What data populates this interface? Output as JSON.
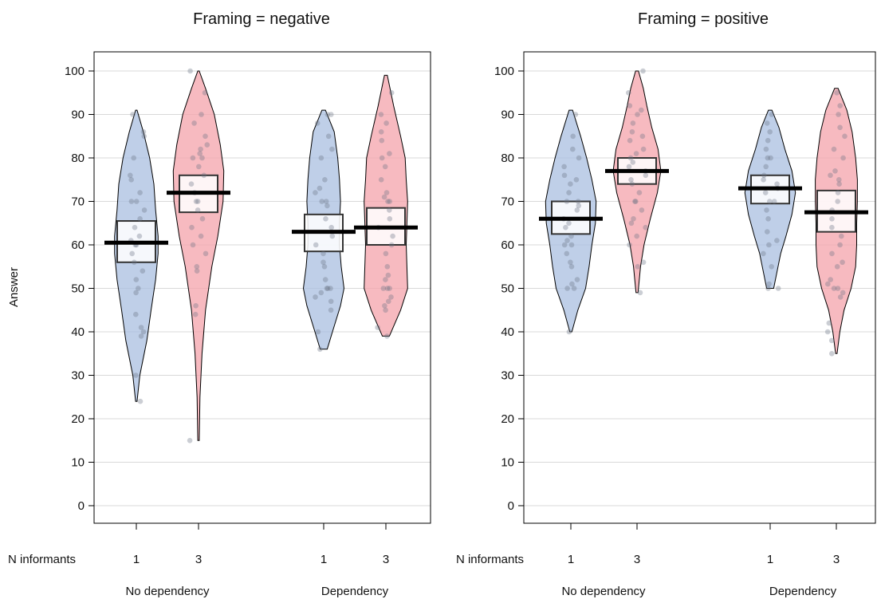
{
  "figure": {
    "y_axis_label": "Answer",
    "x_row_label": "N informants"
  },
  "colors": {
    "n1_fill": "#a9bfe0",
    "n3_fill": "#f4a3ab",
    "outline": "#000000",
    "point": "#6b7285",
    "mean_line": "#000000",
    "hdi_box": "#ffffff",
    "grid": "#d9d9d9"
  },
  "chart_data": [
    {
      "type": "pirateplot",
      "title": "Framing = negative",
      "ylabel": "Answer",
      "ylim": [
        0,
        100
      ],
      "yticks": [
        0,
        10,
        20,
        30,
        40,
        50,
        60,
        70,
        80,
        90,
        100
      ],
      "grid": true,
      "row_label": "N informants",
      "groups": [
        {
          "label": "No dependency",
          "items": [
            {
              "n": "1",
              "color": "n1",
              "mean": 60.5,
              "hdi": [
                56,
                65.5
              ],
              "range": [
                24,
                91
              ],
              "density": [
                [
                  24,
                  0.02
                ],
                [
                  30,
                  0.1
                ],
                [
                  38,
                  0.3
                ],
                [
                  45,
                  0.42
                ],
                [
                  52,
                  0.55
                ],
                [
                  58,
                  0.62
                ],
                [
                  62,
                  0.62
                ],
                [
                  68,
                  0.55
                ],
                [
                  74,
                  0.5
                ],
                [
                  80,
                  0.38
                ],
                [
                  86,
                  0.2
                ],
                [
                  91,
                  0.02
                ]
              ],
              "points": [
                24,
                30,
                39,
                40,
                41,
                44,
                49,
                50,
                52,
                54,
                56,
                58,
                60,
                60,
                61,
                62,
                64,
                66,
                68,
                70,
                70,
                72,
                75,
                76,
                80,
                85,
                86,
                90
              ]
            },
            {
              "n": "3",
              "color": "n3",
              "mean": 72,
              "hdi": [
                67.5,
                76
              ],
              "range": [
                15,
                100
              ],
              "density": [
                [
                  15,
                  0.02
                ],
                [
                  25,
                  0.04
                ],
                [
                  35,
                  0.1
                ],
                [
                  45,
                  0.2
                ],
                [
                  55,
                  0.38
                ],
                [
                  62,
                  0.55
                ],
                [
                  70,
                  0.7
                ],
                [
                  77,
                  0.72
                ],
                [
                  83,
                  0.62
                ],
                [
                  90,
                  0.45
                ],
                [
                  96,
                  0.2
                ],
                [
                  100,
                  0.02
                ]
              ],
              "points": [
                15,
                44,
                46,
                54,
                55,
                58,
                60,
                62,
                64,
                66,
                68,
                70,
                70,
                72,
                74,
                76,
                78,
                80,
                80,
                81,
                82,
                83,
                85,
                88,
                90,
                95,
                100
              ]
            }
          ]
        },
        {
          "label": "Dependency",
          "items": [
            {
              "n": "1",
              "color": "n1",
              "mean": 63,
              "hdi": [
                58.5,
                67
              ],
              "range": [
                36,
                91
              ],
              "density": [
                [
                  36,
                  0.1
                ],
                [
                  40,
                  0.25
                ],
                [
                  46,
                  0.48
                ],
                [
                  50,
                  0.58
                ],
                [
                  55,
                  0.5
                ],
                [
                  60,
                  0.45
                ],
                [
                  65,
                  0.45
                ],
                [
                  70,
                  0.48
                ],
                [
                  75,
                  0.45
                ],
                [
                  80,
                  0.4
                ],
                [
                  86,
                  0.3
                ],
                [
                  91,
                  0.05
                ]
              ],
              "points": [
                36,
                40,
                45,
                47,
                48,
                49,
                50,
                50,
                50,
                52,
                55,
                56,
                58,
                60,
                62,
                64,
                66,
                69,
                70,
                70,
                72,
                73,
                75,
                80,
                82,
                85,
                88,
                90,
                90
              ]
            },
            {
              "n": "3",
              "color": "n3",
              "mean": 64,
              "hdi": [
                60,
                68.5
              ],
              "range": [
                39,
                99
              ],
              "density": [
                [
                  39,
                  0.1
                ],
                [
                  45,
                  0.42
                ],
                [
                  50,
                  0.62
                ],
                [
                  55,
                  0.6
                ],
                [
                  60,
                  0.58
                ],
                [
                  65,
                  0.6
                ],
                [
                  70,
                  0.62
                ],
                [
                  75,
                  0.58
                ],
                [
                  80,
                  0.55
                ],
                [
                  85,
                  0.42
                ],
                [
                  92,
                  0.22
                ],
                [
                  99,
                  0.04
                ]
              ],
              "points": [
                39,
                41,
                45,
                46,
                47,
                48,
                50,
                50,
                50,
                52,
                53,
                55,
                58,
                60,
                62,
                64,
                66,
                68,
                70,
                70,
                71,
                72,
                75,
                78,
                80,
                81,
                84,
                86,
                88,
                90,
                95
              ]
            }
          ]
        }
      ]
    },
    {
      "type": "pirateplot",
      "title": "Framing = positive",
      "ylabel": "",
      "ylim": [
        0,
        100
      ],
      "yticks": [
        0,
        10,
        20,
        30,
        40,
        50,
        60,
        70,
        80,
        90,
        100
      ],
      "grid": true,
      "row_label": "N informants",
      "groups": [
        {
          "label": "No dependency",
          "items": [
            {
              "n": "1",
              "color": "n1",
              "mean": 66,
              "hdi": [
                62.5,
                70
              ],
              "range": [
                40,
                91
              ],
              "density": [
                [
                  40,
                  0.03
                ],
                [
                  45,
                  0.2
                ],
                [
                  50,
                  0.42
                ],
                [
                  55,
                  0.52
                ],
                [
                  60,
                  0.6
                ],
                [
                  65,
                  0.7
                ],
                [
                  70,
                  0.72
                ],
                [
                  75,
                  0.6
                ],
                [
                  80,
                  0.45
                ],
                [
                  85,
                  0.28
                ],
                [
                  91,
                  0.05
                ]
              ],
              "points": [
                40,
                50,
                50,
                51,
                52,
                55,
                56,
                58,
                60,
                60,
                61,
                62,
                64,
                65,
                66,
                68,
                69,
                70,
                70,
                72,
                74,
                75,
                76,
                78,
                80,
                82,
                85,
                90
              ]
            },
            {
              "n": "3",
              "color": "n3",
              "mean": 77,
              "hdi": [
                74,
                80
              ],
              "range": [
                49,
                100
              ],
              "density": [
                [
                  49,
                  0.03
                ],
                [
                  55,
                  0.1
                ],
                [
                  60,
                  0.2
                ],
                [
                  66,
                  0.38
                ],
                [
                  72,
                  0.58
                ],
                [
                  77,
                  0.68
                ],
                [
                  82,
                  0.6
                ],
                [
                  87,
                  0.42
                ],
                [
                  92,
                  0.28
                ],
                [
                  96,
                  0.18
                ],
                [
                  100,
                  0.04
                ]
              ],
              "points": [
                49,
                55,
                56,
                60,
                62,
                64,
                65,
                66,
                68,
                70,
                70,
                72,
                74,
                75,
                76,
                77,
                78,
                79,
                80,
                81,
                82,
                84,
                85,
                86,
                88,
                90,
                91,
                92,
                95,
                100
              ]
            }
          ]
        },
        {
          "label": "Dependency",
          "items": [
            {
              "n": "1",
              "color": "n1",
              "mean": 73,
              "hdi": [
                69.5,
                76
              ],
              "range": [
                50,
                91
              ],
              "density": [
                [
                  50,
                  0.1
                ],
                [
                  54,
                  0.2
                ],
                [
                  58,
                  0.3
                ],
                [
                  62,
                  0.45
                ],
                [
                  67,
                  0.62
                ],
                [
                  72,
                  0.72
                ],
                [
                  77,
                  0.62
                ],
                [
                  82,
                  0.42
                ],
                [
                  87,
                  0.25
                ],
                [
                  91,
                  0.05
                ]
              ],
              "points": [
                50,
                50,
                51,
                55,
                58,
                60,
                61,
                63,
                66,
                68,
                70,
                70,
                72,
                73,
                74,
                75,
                76,
                78,
                80,
                80,
                82,
                84,
                86,
                88,
                90
              ]
            },
            {
              "n": "3",
              "color": "n3",
              "mean": 67.5,
              "hdi": [
                63,
                72.5
              ],
              "range": [
                35,
                96
              ],
              "density": [
                [
                  35,
                  0.02
                ],
                [
                  40,
                  0.1
                ],
                [
                  45,
                  0.22
                ],
                [
                  50,
                  0.42
                ],
                [
                  55,
                  0.55
                ],
                [
                  60,
                  0.58
                ],
                [
                  65,
                  0.58
                ],
                [
                  70,
                  0.6
                ],
                [
                  75,
                  0.6
                ],
                [
                  80,
                  0.55
                ],
                [
                  86,
                  0.45
                ],
                [
                  91,
                  0.3
                ],
                [
                  96,
                  0.05
                ]
              ],
              "points": [
                35,
                38,
                40,
                42,
                48,
                49,
                50,
                50,
                51,
                52,
                55,
                56,
                58,
                60,
                62,
                64,
                66,
                68,
                70,
                72,
                74,
                75,
                76,
                77,
                80,
                82,
                85,
                87,
                90,
                92,
                95
              ]
            }
          ]
        }
      ]
    }
  ]
}
